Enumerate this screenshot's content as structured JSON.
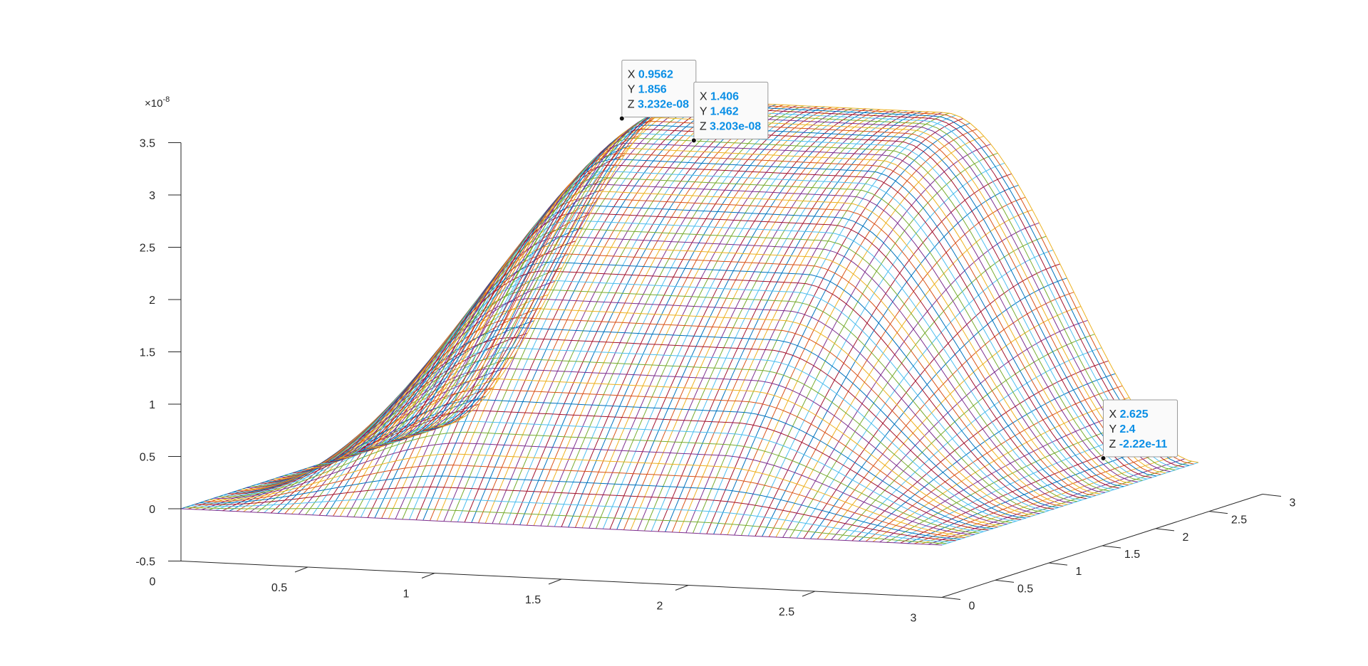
{
  "chart_data": {
    "type": "surface-mesh",
    "title": "",
    "xlabel": "",
    "ylabel": "",
    "zlabel": "",
    "z_exponent_label": "×10",
    "z_exponent_power": "-8",
    "xlim": [
      0,
      3
    ],
    "ylim": [
      0,
      3
    ],
    "zlim": [
      -0.5,
      3.5
    ],
    "x_ticks": [
      0,
      0.5,
      1,
      1.5,
      2,
      2.5,
      3
    ],
    "x_tick_labels": [
      "0",
      "0.5",
      "1",
      "1.5",
      "2",
      "2.5",
      "3"
    ],
    "y_ticks": [
      0,
      0.5,
      1,
      1.5,
      2,
      2.5,
      3
    ],
    "y_tick_labels": [
      "0",
      "0.5",
      "1",
      "1.5",
      "2",
      "2.5",
      "3"
    ],
    "z_ticks": [
      -0.5,
      0,
      0.5,
      1,
      1.5,
      2,
      2.5,
      3,
      3.5
    ],
    "z_tick_labels": [
      "-0.5",
      "0",
      "0.5",
      "1",
      "1.5",
      "2",
      "2.5",
      "3",
      "3.5"
    ],
    "surface": {
      "x_range": [
        0,
        3
      ],
      "y_range": [
        0,
        2.4
      ],
      "peak_z": 3.23,
      "rise_start": 0.0,
      "rise_end": 1.0,
      "fall_start": 2.0,
      "fall_end": 3.0,
      "line_colors": [
        "#0072bd",
        "#d95319",
        "#edb120",
        "#7e2f8e",
        "#77ac30",
        "#4dbeee",
        "#a2142f"
      ]
    },
    "datatips": [
      {
        "name": "datatip-1",
        "x": "0.9562",
        "y": "1.856",
        "z": "3.232e-08"
      },
      {
        "name": "datatip-2",
        "x": "1.406",
        "y": "1.462",
        "z": "3.203e-08"
      },
      {
        "name": "datatip-3",
        "x": "2.625",
        "y": "2.4",
        "z": "-2.22e-11"
      }
    ],
    "datatip_keys": {
      "x": "X",
      "y": "Y",
      "z": "Z"
    }
  },
  "colors": {
    "axis": "#262626",
    "datatip_value": "#0a8fe6",
    "background": "#ffffff"
  }
}
